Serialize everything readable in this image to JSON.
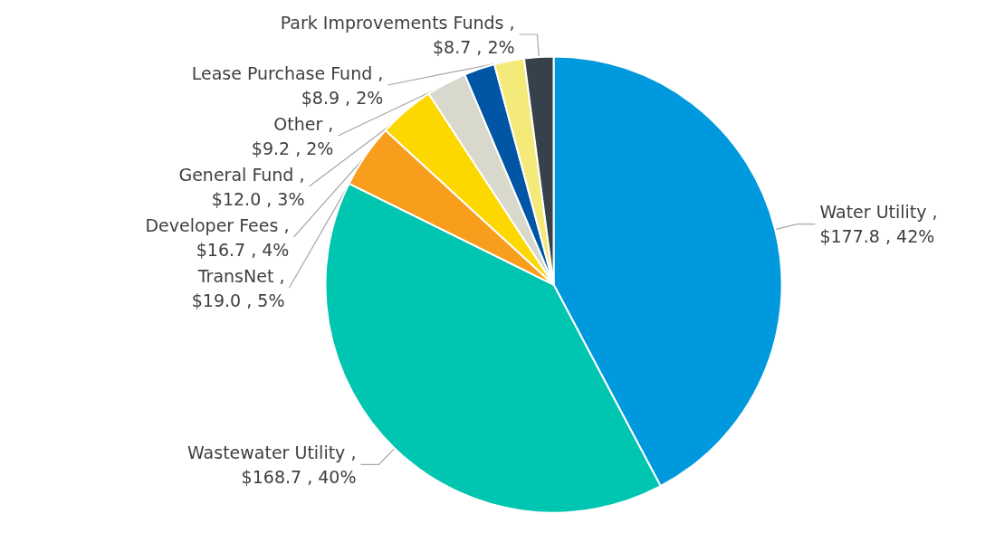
{
  "chart_data": {
    "type": "pie",
    "categories": [
      "Water Utility",
      "Wastewater Utility",
      "TransNet",
      "Developer Fees",
      "General Fund",
      "Other",
      "Lease Purchase Fund",
      "Park Improvements Funds"
    ],
    "values": [
      177.8,
      168.7,
      19.0,
      16.7,
      12.0,
      9.2,
      8.9,
      8.7
    ],
    "value_labels": [
      ",\n$177.8 , 42%",
      ",\n$168.7 , 40%",
      ",\n$19.0 , 5%",
      ",\n$16.7 , 4%",
      ",\n$12.0 , 3%",
      ",\n$9.2 , 2%",
      ",\n$8.9 , 2%",
      ",\n$8.7 , 2%"
    ],
    "colors": [
      "#0099dd",
      "#00c5b0",
      "#f99d1c",
      "#fdd700",
      "#d8d8cc",
      "#0055a5",
      "#f3ea7a",
      "#36414a"
    ],
    "legend": false
  }
}
